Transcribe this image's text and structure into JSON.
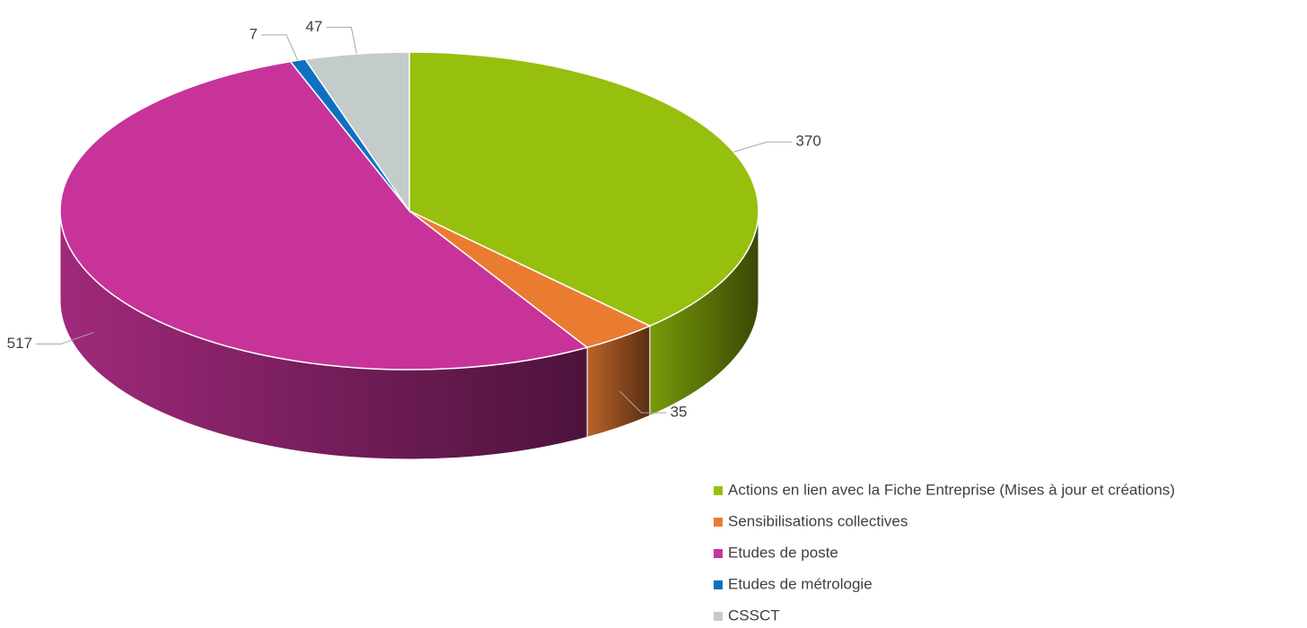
{
  "chart_data": {
    "type": "pie",
    "categories": [
      "Actions en lien avec la Fiche Entreprise (Mises à jour et créations)",
      "Sensibilisations collectives",
      "Etudes de poste",
      "Etudes de métrologie",
      "CSSCT"
    ],
    "values": [
      370,
      35,
      517,
      7,
      47
    ],
    "colors": [
      "#97bf0d",
      "#ea7c32",
      "#c8339a",
      "#1070c0",
      "#c3cbcb"
    ],
    "legend": "bottom-right"
  }
}
